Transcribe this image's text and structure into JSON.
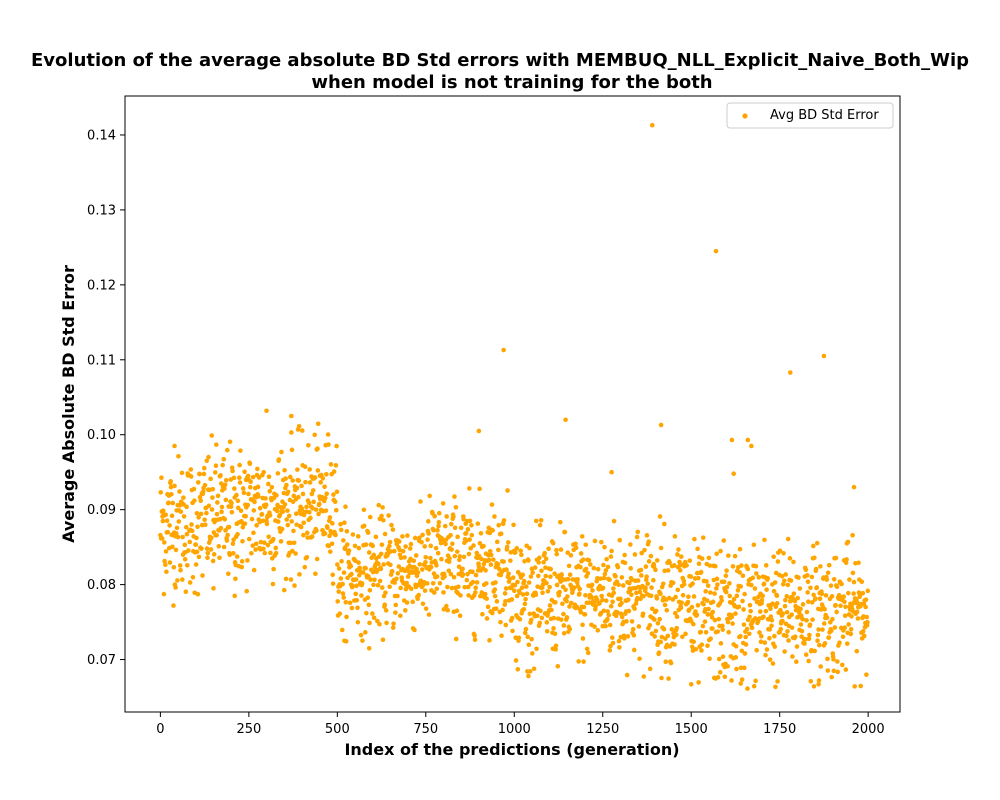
{
  "chart_data": {
    "type": "scatter",
    "title_line1": "Evolution of the average absolute BD Std errors with MEMBUQ_NLL_Explicit_Naive_Both_Wip",
    "title_line2": "when model is not training for the both",
    "xlabel": "Index of the predictions (generation)",
    "ylabel": "Average Absolute BD Std Error",
    "xlim": [
      -100,
      2090
    ],
    "ylim": [
      0.063,
      0.1452
    ],
    "xticks": [
      0,
      250,
      500,
      750,
      1000,
      1250,
      1500,
      1750,
      2000
    ],
    "yticks": [
      0.07,
      0.08,
      0.09,
      0.1,
      0.11,
      0.12,
      0.13,
      0.14
    ],
    "ytick_labels": [
      "0.07",
      "0.08",
      "0.09",
      "0.10",
      "0.11",
      "0.12",
      "0.13",
      "0.14"
    ],
    "grid": false,
    "legend_position": "top-right",
    "series": [
      {
        "name": "Avg BD Std Error",
        "color": "#ffa500",
        "n_points": 2000,
        "segments": [
          {
            "x_start": 0,
            "x_end": 120,
            "mean_start": 0.088,
            "mean_end": 0.088,
            "spread": 0.0045
          },
          {
            "x_start": 120,
            "x_end": 260,
            "mean_start": 0.089,
            "mean_end": 0.0895,
            "spread": 0.0045
          },
          {
            "x_start": 260,
            "x_end": 500,
            "mean_start": 0.0895,
            "mean_end": 0.091,
            "spread": 0.0045
          },
          {
            "x_start": 500,
            "x_end": 750,
            "mean_start": 0.0815,
            "mean_end": 0.082,
            "spread": 0.0038
          },
          {
            "x_start": 750,
            "x_end": 1000,
            "mean_start": 0.083,
            "mean_end": 0.0825,
            "spread": 0.0042
          },
          {
            "x_start": 1000,
            "x_end": 1250,
            "mean_start": 0.0785,
            "mean_end": 0.0785,
            "spread": 0.0042
          },
          {
            "x_start": 1250,
            "x_end": 1500,
            "mean_start": 0.079,
            "mean_end": 0.078,
            "spread": 0.0045
          },
          {
            "x_start": 1500,
            "x_end": 1750,
            "mean_start": 0.0755,
            "mean_end": 0.0765,
            "spread": 0.0045
          },
          {
            "x_start": 1750,
            "x_end": 2000,
            "mean_start": 0.0765,
            "mean_end": 0.0765,
            "spread": 0.0042
          }
        ],
        "notable_points": [
          {
            "x": 1390,
            "y": 0.1413
          },
          {
            "x": 1570,
            "y": 0.1245
          },
          {
            "x": 970,
            "y": 0.1113
          },
          {
            "x": 1875,
            "y": 0.1105
          },
          {
            "x": 1780,
            "y": 0.1083
          },
          {
            "x": 300,
            "y": 0.1032
          },
          {
            "x": 370,
            "y": 0.1025
          },
          {
            "x": 1415,
            "y": 0.1013
          },
          {
            "x": 900,
            "y": 0.1005
          },
          {
            "x": 1145,
            "y": 0.102
          },
          {
            "x": 1615,
            "y": 0.0993
          },
          {
            "x": 1660,
            "y": 0.0993
          },
          {
            "x": 1670,
            "y": 0.0985
          },
          {
            "x": 40,
            "y": 0.0985
          },
          {
            "x": 1275,
            "y": 0.095
          },
          {
            "x": 1620,
            "y": 0.0948
          },
          {
            "x": 1960,
            "y": 0.093
          },
          {
            "x": 590,
            "y": 0.0715
          },
          {
            "x": 520,
            "y": 0.0725
          },
          {
            "x": 1500,
            "y": 0.0667
          },
          {
            "x": 1640,
            "y": 0.0668
          },
          {
            "x": 1860,
            "y": 0.0667
          },
          {
            "x": 1040,
            "y": 0.0678
          },
          {
            "x": 1010,
            "y": 0.0687
          },
          {
            "x": 1595,
            "y": 0.0677
          },
          {
            "x": 210,
            "y": 0.0785
          },
          {
            "x": 150,
            "y": 0.0795
          }
        ]
      }
    ]
  }
}
